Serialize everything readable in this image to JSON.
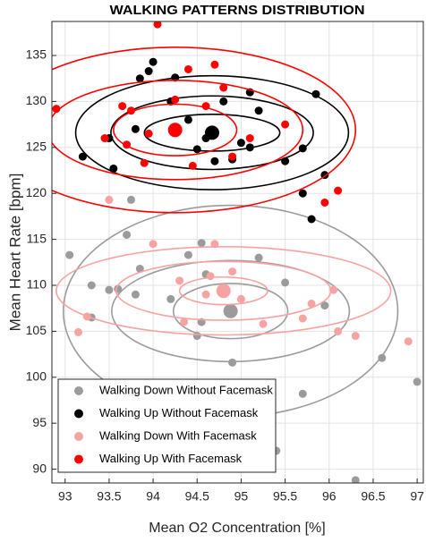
{
  "chart_data": {
    "type": "scatter",
    "title": "WALKING PATTERNS DISTRIBUTION",
    "xlabel": "Mean O2 Concentration [%]",
    "ylabel": "Mean Heart Rate [bpm]",
    "xlim": [
      92.85,
      97.07
    ],
    "ylim": [
      88.5,
      138.7
    ],
    "xticks": [
      93,
      93.5,
      94,
      94.5,
      95,
      95.5,
      96,
      96.5,
      97
    ],
    "yticks": [
      90,
      95,
      100,
      105,
      110,
      115,
      120,
      125,
      130,
      135
    ],
    "grid": true,
    "legend": "lower left",
    "series": [
      {
        "name": "Walking Down Without Facemask",
        "color": "#9b9b9b",
        "x": [
          93.05,
          93.3,
          93.5,
          93.6,
          93.3,
          93.75,
          93.7,
          93.85,
          93.8,
          94.2,
          94.4,
          94.55,
          94.6,
          94.55,
          94.9,
          95.2,
          95.5,
          95.7,
          95.95,
          96.6,
          96.3,
          97.0,
          95.4,
          94.5
        ],
        "values": [
          113.3,
          110,
          109.5,
          109.6,
          106.5,
          119.3,
          115.5,
          111.8,
          109,
          108.5,
          113.3,
          114.6,
          111.2,
          106,
          101.6,
          113,
          110.3,
          98.2,
          107.8,
          102.1,
          88.8,
          99.5,
          92,
          104.5
        ],
        "center": [
          94.88,
          107.2
        ],
        "ellipses": [
          [
            0.65,
            3
          ],
          [
            1.35,
            5.5
          ],
          [
            1.9,
            11.5
          ]
        ]
      },
      {
        "name": "Walking Up Without Facemask",
        "color": "#000000",
        "x": [
          93.85,
          93.95,
          94.0,
          93.8,
          93.5,
          93.55,
          93.2,
          94.2,
          94.4,
          94.6,
          94.5,
          94.7,
          94.9,
          94.8,
          95.1,
          95.2,
          95.1,
          95.0,
          95.5,
          95.7,
          95.85,
          95.7,
          95.8,
          95.95,
          94.25
        ],
        "values": [
          132.5,
          133.3,
          134.3,
          127,
          126,
          122.7,
          124,
          130,
          128,
          126,
          124.8,
          123.5,
          123.7,
          130,
          131,
          129,
          125,
          125.5,
          123.5,
          124.9,
          130.8,
          120,
          117.2,
          122,
          132.6
        ],
        "center": [
          94.67,
          126.6
        ],
        "ellipses": [
          [
            0.77,
            2
          ],
          [
            1.15,
            4
          ],
          [
            1.55,
            6.2
          ]
        ]
      },
      {
        "name": "Walking Down With Facemask",
        "color": "#f7a3a3",
        "x": [
          93.15,
          93.25,
          93.5,
          94.0,
          94.3,
          94.35,
          94.65,
          94.6,
          94.7,
          95.0,
          95.25,
          95.7,
          95.8,
          96.1,
          96.3,
          96.9,
          94.9,
          96.05
        ],
        "values": [
          104.9,
          106.6,
          119.3,
          114.5,
          110.5,
          106,
          111,
          109,
          114.5,
          108.5,
          105.8,
          106.4,
          108,
          105,
          104.5,
          103.9,
          111.5,
          109.5
        ],
        "center": [
          94.8,
          109.4
        ],
        "ellipses": [
          [
            0.5,
            1.5
          ],
          [
            1.22,
            3.2
          ],
          [
            1.9,
            4.8
          ]
        ]
      },
      {
        "name": "Walking Up With Facemask",
        "color": "#ff0000",
        "x": [
          92.9,
          93.45,
          93.65,
          93.75,
          93.7,
          93.95,
          94.05,
          94.4,
          94.25,
          94.45,
          94.6,
          94.9,
          95.1,
          94.7,
          95.5,
          95.95,
          96.1,
          94.8,
          93.9
        ],
        "values": [
          129.2,
          126,
          129.5,
          129,
          125.3,
          126.5,
          138.4,
          133.5,
          130.2,
          123,
          129.5,
          124,
          126,
          134,
          127.5,
          119,
          120.3,
          131.5,
          123.3
        ],
        "center": [
          94.25,
          126.9
        ],
        "ellipses": [
          [
            0.7,
            2.8
          ],
          [
            1.45,
            5.4
          ],
          [
            2.05,
            9
          ]
        ]
      }
    ]
  }
}
